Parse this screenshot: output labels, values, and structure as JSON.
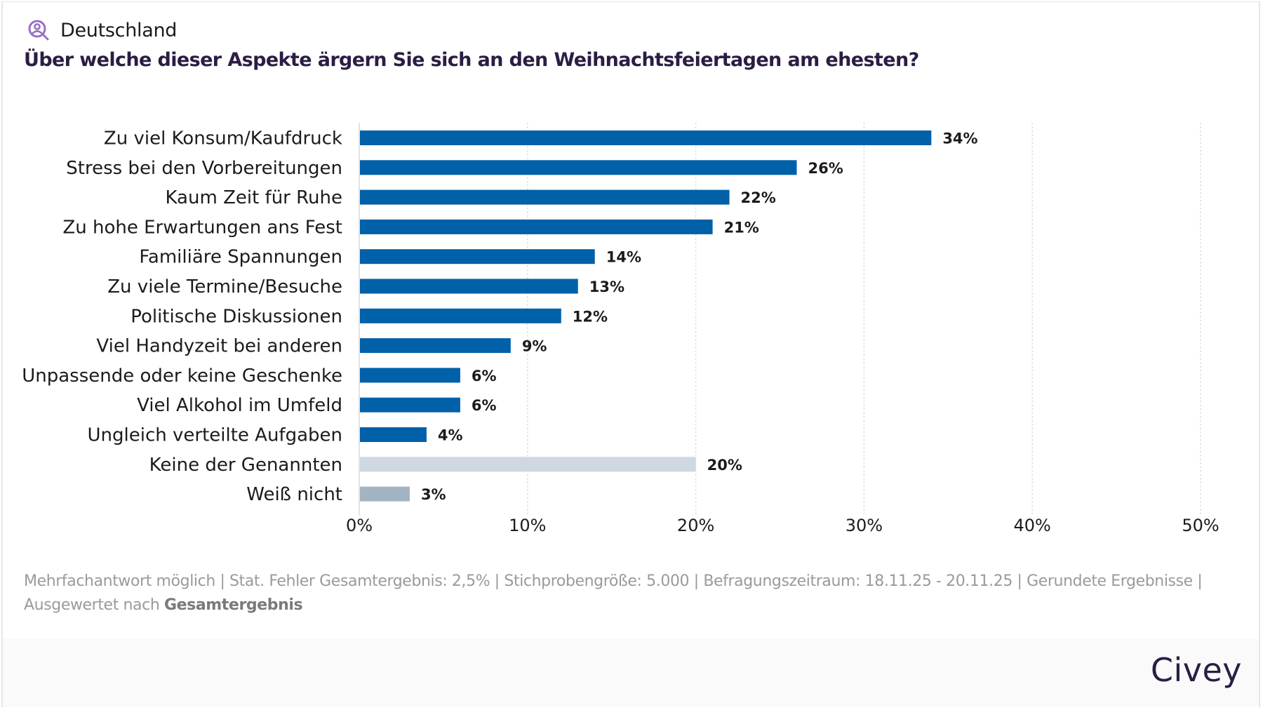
{
  "header": {
    "region_icon": "person-search-icon",
    "region_label": "Deutschland",
    "title": "Über welche dieser Aspekte ärgern Sie sich an den Weihnachtsfeiertagen am ehesten?"
  },
  "colors": {
    "primary_bar": "#0060a8",
    "neutral_bar": "#cfd8e0",
    "unknown_bar": "#a2b3c1",
    "title": "#2b1d44",
    "icon": "#9b6fc6"
  },
  "chart_data": {
    "type": "bar",
    "orientation": "horizontal",
    "title": "Über welche dieser Aspekte ärgern Sie sich an den Weihnachtsfeiertagen am ehesten?",
    "xlabel": "",
    "ylabel": "",
    "xlim": [
      0,
      50
    ],
    "x_ticks": [
      "0%",
      "10%",
      "20%",
      "30%",
      "40%",
      "50%"
    ],
    "x_tick_values": [
      0,
      10,
      20,
      30,
      40,
      50
    ],
    "grid": "vertical dotted",
    "unit": "%",
    "categories": [
      "Zu viel Konsum/Kaufdruck",
      "Stress bei den Vorbereitungen",
      "Kaum Zeit für Ruhe",
      "Zu hohe Erwartungen ans Fest",
      "Familiäre Spannungen",
      "Zu viele Termine/Besuche",
      "Politische Diskussionen",
      "Viel Handyzeit bei anderen",
      "Unpassende oder keine Geschenke",
      "Viel Alkohol im Umfeld",
      "Ungleich verteilte Aufgaben",
      "Keine der Genannten",
      "Weiß nicht"
    ],
    "values": [
      34,
      26,
      22,
      21,
      14,
      13,
      12,
      9,
      6,
      6,
      4,
      20,
      3
    ],
    "value_labels": [
      "34%",
      "26%",
      "22%",
      "21%",
      "14%",
      "13%",
      "12%",
      "9%",
      "6%",
      "6%",
      "4%",
      "20%",
      "3%"
    ],
    "bar_kinds": [
      "primary",
      "primary",
      "primary",
      "primary",
      "primary",
      "primary",
      "primary",
      "primary",
      "primary",
      "primary",
      "primary",
      "neutral",
      "unknown"
    ]
  },
  "footer": {
    "note_line1": "Mehrfachantwort möglich | Stat. Fehler Gesamtergebnis: 2,5% | Stichprobengröße: 5.000 | Befragungszeitraum: 18.11.25 - 20.11.25 | Gerundete Ergebnisse |",
    "note_line2_prefix": "Ausgewertet nach ",
    "note_line2_bold": "Gesamtergebnis",
    "logo": "Civey"
  }
}
